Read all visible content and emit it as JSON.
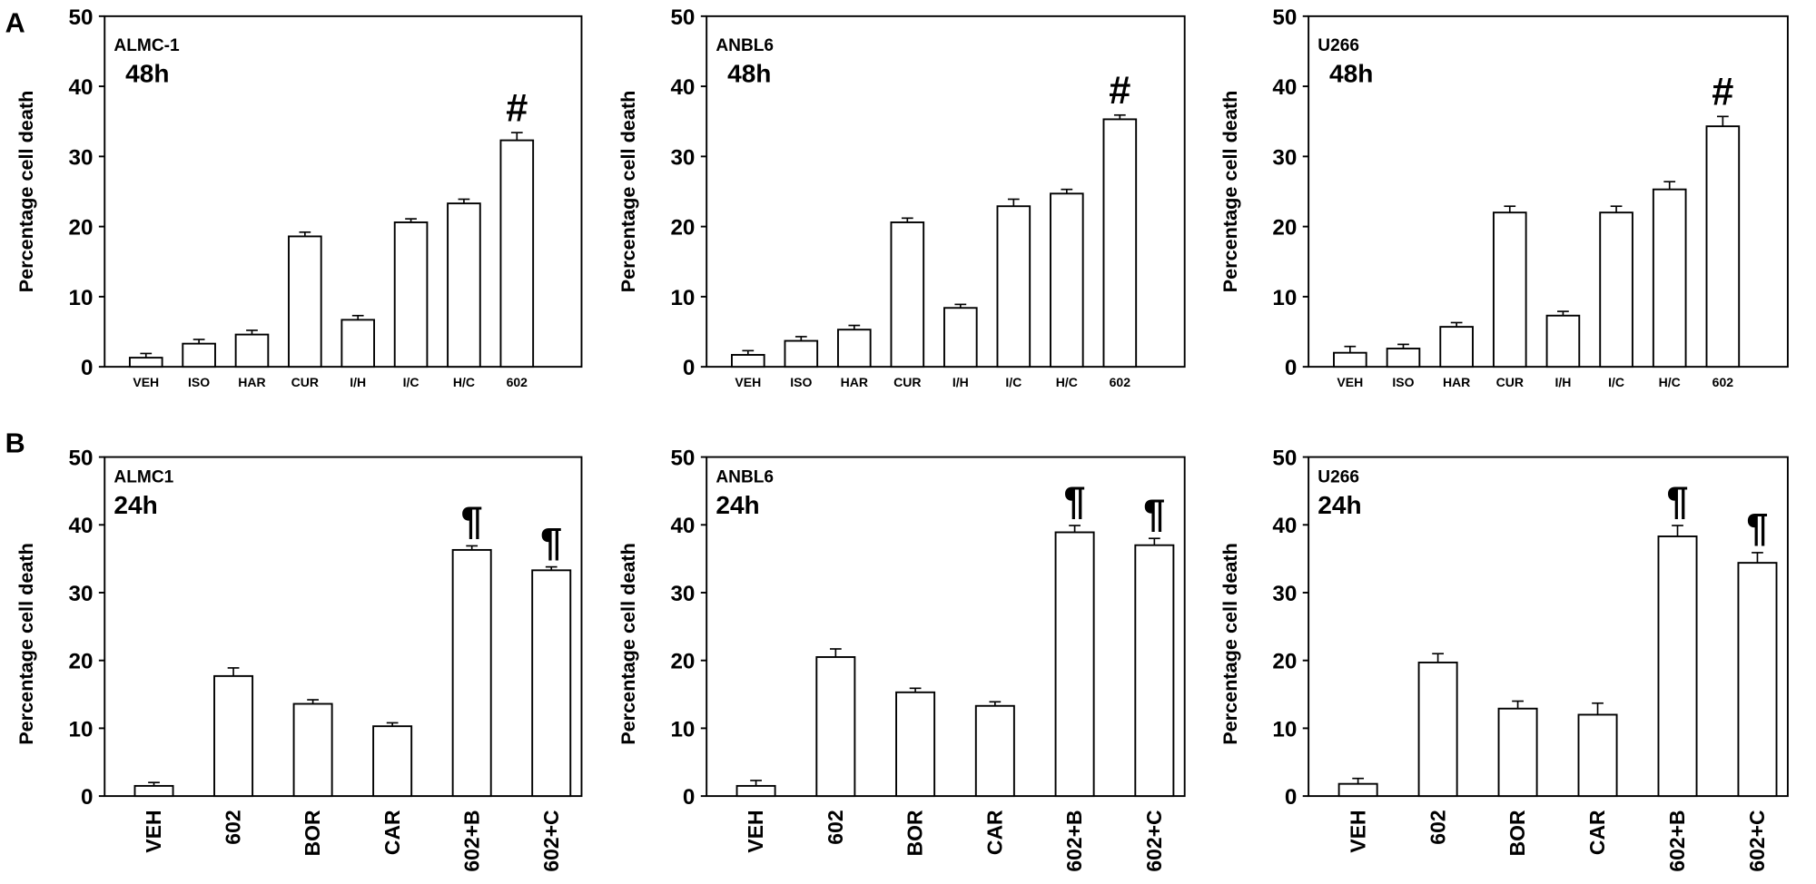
{
  "chart_data": [
    {
      "type": "bar",
      "panel_label": "A",
      "cell_line": "ALMC-1",
      "time": "48h",
      "ylabel": "Percentage cell death",
      "ylim": [
        0,
        50
      ],
      "yticks": [
        "0",
        "10",
        "20",
        "30",
        "40",
        "50"
      ],
      "categories": [
        "VEH",
        "ISO",
        "HAR",
        "CUR",
        "I/H",
        "I/C",
        "H/C",
        "602"
      ],
      "values": [
        1.3,
        3.3,
        4.6,
        18.6,
        6.7,
        20.6,
        23.3,
        32.3
      ],
      "errors": [
        0.6,
        0.6,
        0.6,
        0.6,
        0.6,
        0.5,
        0.6,
        1.1
      ],
      "annotations": [
        {
          "category": "602",
          "text": "#"
        }
      ],
      "bar_color": "#ffffff",
      "grid": false
    },
    {
      "type": "bar",
      "panel_label": "",
      "cell_line": "ANBL6",
      "time": "48h",
      "ylabel": "Percentage cell death",
      "ylim": [
        0,
        50
      ],
      "yticks": [
        "0",
        "10",
        "20",
        "30",
        "40",
        "50"
      ],
      "categories": [
        "VEH",
        "ISO",
        "HAR",
        "CUR",
        "I/H",
        "I/C",
        "H/C",
        "602"
      ],
      "values": [
        1.7,
        3.7,
        5.3,
        20.6,
        8.4,
        22.9,
        24.7,
        35.3
      ],
      "errors": [
        0.6,
        0.6,
        0.6,
        0.6,
        0.5,
        1.0,
        0.6,
        0.6
      ],
      "annotations": [
        {
          "category": "602",
          "text": "#"
        }
      ],
      "bar_color": "#ffffff",
      "grid": false
    },
    {
      "type": "bar",
      "panel_label": "",
      "cell_line": "U266",
      "time": "48h",
      "ylabel": "Percentage cell death",
      "ylim": [
        0,
        50
      ],
      "yticks": [
        "0",
        "10",
        "20",
        "30",
        "40",
        "50"
      ],
      "categories": [
        "VEH",
        "ISO",
        "HAR",
        "CUR",
        "I/H",
        "I/C",
        "H/C",
        "602"
      ],
      "values": [
        2.0,
        2.6,
        5.7,
        22.0,
        7.3,
        22.0,
        25.3,
        34.3
      ],
      "errors": [
        0.9,
        0.6,
        0.6,
        0.9,
        0.6,
        0.9,
        1.1,
        1.4
      ],
      "annotations": [
        {
          "category": "602",
          "text": "#"
        }
      ],
      "bar_color": "#ffffff",
      "grid": false
    },
    {
      "type": "bar",
      "panel_label": "B",
      "cell_line": "ALMC1",
      "time": "24h",
      "ylabel": "Percentage cell death",
      "ylim": [
        0,
        50
      ],
      "yticks": [
        "0",
        "10",
        "20",
        "30",
        "40",
        "50"
      ],
      "categories": [
        "VEH",
        "602",
        "BOR",
        "CAR",
        "602+B",
        "602+C"
      ],
      "values": [
        1.5,
        17.7,
        13.6,
        10.3,
        36.3,
        33.3
      ],
      "errors": [
        0.5,
        1.2,
        0.6,
        0.5,
        0.6,
        0.5
      ],
      "annotations": [
        {
          "category": "602+B",
          "text": "¶"
        },
        {
          "category": "602+C",
          "text": "¶"
        }
      ],
      "bar_color": "#ffffff",
      "grid": false
    },
    {
      "type": "bar",
      "panel_label": "",
      "cell_line": "ANBL6",
      "time": "24h",
      "ylabel": "Percentage cell death",
      "ylim": [
        0,
        50
      ],
      "yticks": [
        "0",
        "10",
        "20",
        "30",
        "40",
        "50"
      ],
      "categories": [
        "VEH",
        "602",
        "BOR",
        "CAR",
        "602+B",
        "602+C"
      ],
      "values": [
        1.5,
        20.5,
        15.3,
        13.3,
        38.9,
        37.0
      ],
      "errors": [
        0.8,
        1.2,
        0.6,
        0.6,
        1.0,
        1.0
      ],
      "annotations": [
        {
          "category": "602+B",
          "text": "¶"
        },
        {
          "category": "602+C",
          "text": "¶"
        }
      ],
      "bar_color": "#ffffff",
      "grid": false
    },
    {
      "type": "bar",
      "panel_label": "",
      "cell_line": "U266",
      "time": "24h",
      "ylabel": "Percentage cell death",
      "ylim": [
        0,
        50
      ],
      "yticks": [
        "0",
        "10",
        "20",
        "30",
        "40",
        "50"
      ],
      "categories": [
        "VEH",
        "602",
        "BOR",
        "CAR",
        "602+B",
        "602+C"
      ],
      "values": [
        1.8,
        19.7,
        12.9,
        12.0,
        38.3,
        34.4
      ],
      "errors": [
        0.8,
        1.3,
        1.1,
        1.7,
        1.6,
        1.5
      ],
      "annotations": [
        {
          "category": "602+B",
          "text": "¶"
        },
        {
          "category": "602+C",
          "text": "¶"
        }
      ],
      "bar_color": "#ffffff",
      "grid": false
    }
  ]
}
